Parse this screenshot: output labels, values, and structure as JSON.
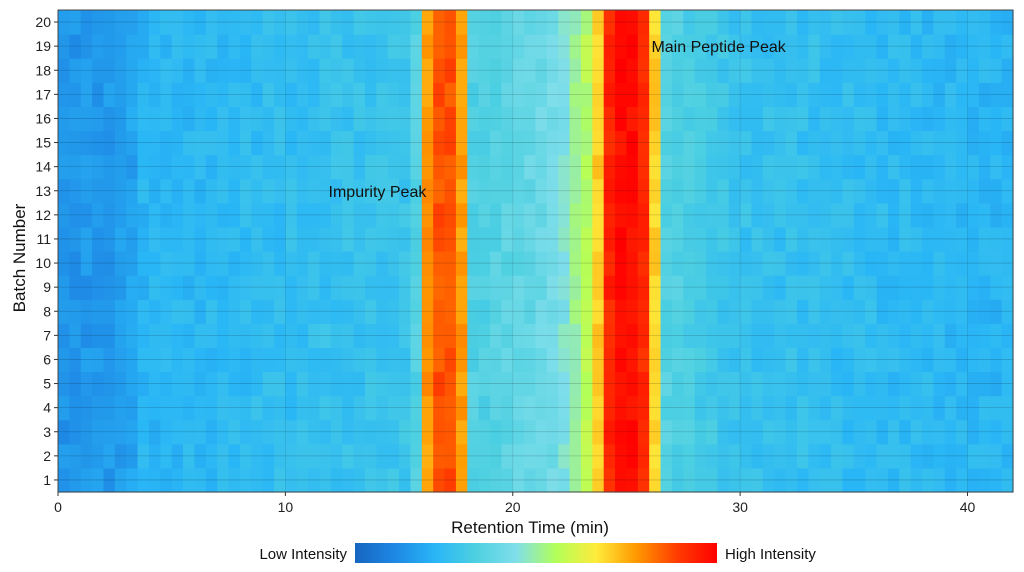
{
  "chart_data": {
    "type": "heatmap",
    "xlabel": "Retention Time (min)",
    "ylabel": "Batch Number",
    "xlim": [
      0,
      42
    ],
    "xticks": [
      0,
      10,
      20,
      30,
      40
    ],
    "yticks": [
      1,
      2,
      3,
      4,
      5,
      6,
      7,
      8,
      9,
      10,
      11,
      12,
      13,
      14,
      15,
      16,
      17,
      18,
      19,
      20
    ],
    "batches": [
      1,
      2,
      3,
      4,
      5,
      6,
      7,
      8,
      9,
      10,
      11,
      12,
      13,
      14,
      15,
      16,
      17,
      18,
      19,
      20
    ],
    "time_step": 0.5,
    "intensity_range": [
      0,
      1
    ],
    "intensity_profile": {
      "baseline": 0.12,
      "drift": [
        [
          0,
          0.02
        ],
        [
          3.2,
          0.04
        ],
        [
          3.4,
          0.1
        ],
        [
          15,
          0.16
        ],
        [
          18,
          0.2
        ],
        [
          22,
          0.3
        ],
        [
          23.8,
          0.5
        ],
        [
          26,
          0.25
        ],
        [
          30,
          0.15
        ],
        [
          42,
          0.1
        ]
      ],
      "peaks": [
        {
          "label": "Impurity Peak",
          "center_min": 17.0,
          "width_min": 0.6,
          "intensity": 0.9
        },
        {
          "label": "Main Peptide Peak",
          "center_min": 25.0,
          "width_min": 0.9,
          "intensity": 1.0
        }
      ]
    },
    "annotations": [
      {
        "text": "Impurity Peak",
        "x": 16.2,
        "y": 13
      },
      {
        "text": "Main Peptide Peak",
        "x": 26.1,
        "y": 19
      }
    ],
    "colorscale": [
      "#1565c0",
      "#1e88e5",
      "#29b6f6",
      "#4dd0e1",
      "#80deea",
      "#b2ff59",
      "#ffeb3b",
      "#ff9800",
      "#ff3d00",
      "#ff0000"
    ],
    "colorbar": {
      "low_label": "Low Intensity",
      "high_label": "High Intensity"
    },
    "grid": true
  }
}
